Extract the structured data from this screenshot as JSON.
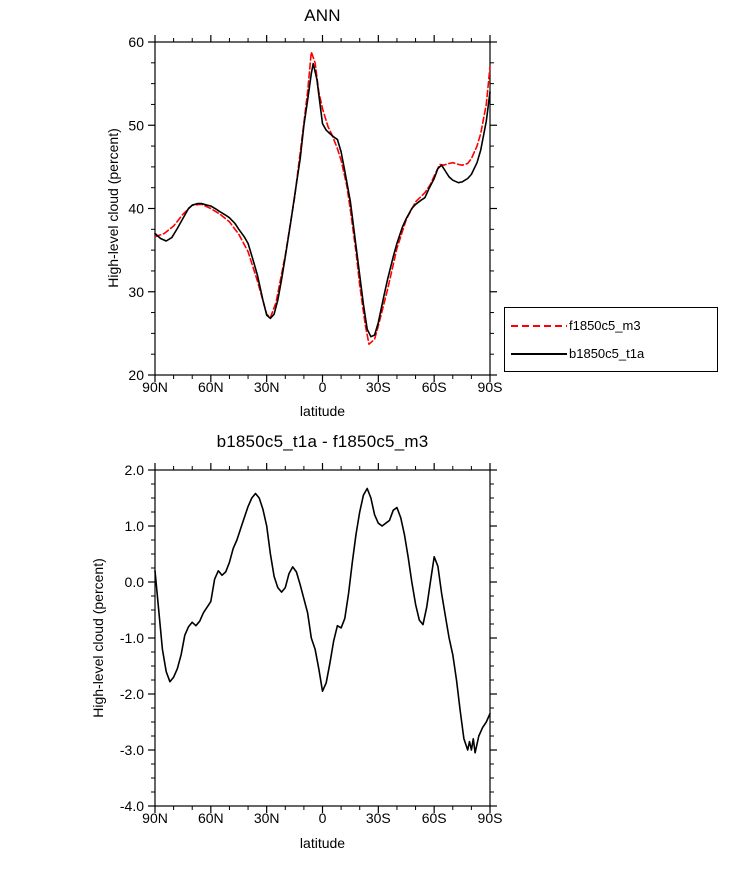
{
  "figure": {
    "background": "#ffffff",
    "series_red": "#ff0000",
    "series_black": "#000000"
  },
  "chart_data": [
    {
      "type": "line",
      "title": "ANN",
      "xlabel": "latitude",
      "ylabel": "High-level cloud (percent)",
      "xlim_degrees": [
        90,
        -90
      ],
      "ylim": [
        20,
        60
      ],
      "grid": false,
      "legend_position": "outside-right",
      "x_tick_values": [
        90,
        60,
        30,
        0,
        -30,
        -60,
        -90
      ],
      "x_tick_labels": [
        "90N",
        "60N",
        "30N",
        "0",
        "30S",
        "60S",
        "90S"
      ],
      "y_tick_values": [
        20,
        30,
        40,
        50,
        60
      ],
      "y_tick_labels": [
        "20",
        "30",
        "40",
        "50",
        "60"
      ],
      "series": [
        {
          "name": "f1850c5_m3",
          "color": "#ff0000",
          "style": "dashed",
          "lat": [
            90,
            85,
            80,
            75,
            70,
            65,
            60,
            55,
            50,
            45,
            40,
            35,
            30,
            28,
            25,
            20,
            15,
            10,
            8,
            6,
            4,
            2,
            0,
            -3,
            -5,
            -8,
            -10,
            -13,
            -15,
            -18,
            -20,
            -23,
            -25,
            -28,
            -30,
            -35,
            -40,
            -45,
            -50,
            -55,
            -58,
            -60,
            -63,
            -65,
            -68,
            -70,
            -73,
            -75,
            -78,
            -80,
            -83,
            -85,
            -88,
            -90
          ],
          "values": [
            36.6,
            37.0,
            37.9,
            39.3,
            40.4,
            40.5,
            40.0,
            39.3,
            38.4,
            36.9,
            34.8,
            31.3,
            27.3,
            26.9,
            28.7,
            34.4,
            41.3,
            50.3,
            54.0,
            58.8,
            57.5,
            54.0,
            52.0,
            49.8,
            48.9,
            47.2,
            45.8,
            42.8,
            39.8,
            34.8,
            30.8,
            26.0,
            23.7,
            24.3,
            25.9,
            30.3,
            35.2,
            38.7,
            40.8,
            41.9,
            42.9,
            43.9,
            45.3,
            45.2,
            45.4,
            45.5,
            45.3,
            45.2,
            45.4,
            46.0,
            47.5,
            49.0,
            52.5,
            57.0
          ]
        },
        {
          "name": "b1850c5_t1a",
          "color": "#000000",
          "style": "solid",
          "lat": [
            90,
            87,
            84,
            81,
            78,
            75,
            72,
            70,
            67,
            65,
            62,
            60,
            57,
            55,
            52,
            50,
            47,
            45,
            42,
            40,
            37,
            35,
            32,
            30,
            28,
            26,
            24,
            22,
            20,
            17,
            15,
            12,
            10,
            8,
            6,
            5,
            3,
            1,
            0,
            -2,
            -4,
            -6,
            -8,
            -10,
            -12,
            -15,
            -18,
            -20,
            -22,
            -24,
            -26,
            -28,
            -30,
            -33,
            -35,
            -38,
            -40,
            -43,
            -45,
            -48,
            -50,
            -53,
            -55,
            -57,
            -60,
            -62,
            -64,
            -66,
            -68,
            -70,
            -73,
            -75,
            -78,
            -80,
            -83,
            -85,
            -88,
            -90
          ],
          "values": [
            37.0,
            36.4,
            36.1,
            36.5,
            37.6,
            38.8,
            40.0,
            40.4,
            40.6,
            40.6,
            40.4,
            40.3,
            39.9,
            39.6,
            39.2,
            38.9,
            38.2,
            37.5,
            36.6,
            35.8,
            33.6,
            32.0,
            29.0,
            27.2,
            26.8,
            27.3,
            29.0,
            31.5,
            34.2,
            38.5,
            41.5,
            46.0,
            50.0,
            53.0,
            56.2,
            57.4,
            55.5,
            52.0,
            50.2,
            49.4,
            49.0,
            48.6,
            48.3,
            46.8,
            44.5,
            40.8,
            35.5,
            32.0,
            28.5,
            25.5,
            24.6,
            24.8,
            26.3,
            29.5,
            31.5,
            34.2,
            35.8,
            37.8,
            38.8,
            40.0,
            40.5,
            41.0,
            41.3,
            42.3,
            43.6,
            44.8,
            45.2,
            44.5,
            43.8,
            43.4,
            43.1,
            43.2,
            43.6,
            44.1,
            45.5,
            47.0,
            50.5,
            54.0
          ]
        }
      ]
    },
    {
      "type": "line",
      "title": "b1850c5_t1a - f1850c5_m3",
      "xlabel": "latitude",
      "ylabel": "High-level cloud (percent)",
      "xlim_degrees": [
        90,
        -90
      ],
      "ylim": [
        -4,
        2
      ],
      "grid": false,
      "legend_position": "none",
      "x_tick_values": [
        90,
        60,
        30,
        0,
        -30,
        -60,
        -90
      ],
      "x_tick_labels": [
        "90N",
        "60N",
        "30N",
        "0",
        "30S",
        "60S",
        "90S"
      ],
      "y_tick_values": [
        -4,
        -3,
        -2,
        -1,
        0,
        1,
        2
      ],
      "y_tick_labels": [
        "-4.0",
        "-3.0",
        "-2.0",
        "-1.0",
        "0.0",
        "1.0",
        "2.0"
      ],
      "series": [
        {
          "name": "b1850c5_t1a - f1850c5_m3",
          "color": "#000000",
          "style": "solid",
          "lat": [
            90,
            88,
            86,
            84,
            82,
            80,
            78,
            76,
            74,
            72,
            70,
            68,
            66,
            64,
            62,
            60,
            58,
            56,
            54,
            52,
            50,
            48,
            46,
            44,
            42,
            40,
            38,
            36,
            34,
            32,
            30,
            28,
            26,
            24,
            22,
            20,
            18,
            16,
            14,
            12,
            10,
            8,
            6,
            4,
            2,
            0,
            -2,
            -4,
            -6,
            -8,
            -10,
            -12,
            -14,
            -16,
            -18,
            -20,
            -22,
            -24,
            -26,
            -28,
            -30,
            -32,
            -34,
            -36,
            -38,
            -40,
            -42,
            -44,
            -46,
            -48,
            -50,
            -52,
            -54,
            -56,
            -58,
            -60,
            -62,
            -64,
            -66,
            -68,
            -70,
            -72,
            -74,
            -76,
            -78,
            -79,
            -80,
            -81,
            -82,
            -84,
            -86,
            -88,
            -90
          ],
          "values": [
            0.2,
            -0.5,
            -1.2,
            -1.6,
            -1.78,
            -1.7,
            -1.55,
            -1.3,
            -0.95,
            -0.8,
            -0.72,
            -0.78,
            -0.7,
            -0.55,
            -0.45,
            -0.35,
            0.05,
            0.2,
            0.12,
            0.18,
            0.35,
            0.6,
            0.75,
            0.95,
            1.15,
            1.35,
            1.5,
            1.58,
            1.5,
            1.3,
            1.0,
            0.5,
            0.1,
            -0.1,
            -0.18,
            -0.1,
            0.15,
            0.27,
            0.18,
            -0.05,
            -0.3,
            -0.55,
            -1.0,
            -1.2,
            -1.55,
            -1.95,
            -1.8,
            -1.45,
            -1.05,
            -0.78,
            -0.82,
            -0.65,
            -0.2,
            0.35,
            0.85,
            1.25,
            1.55,
            1.67,
            1.5,
            1.2,
            1.05,
            1.0,
            1.05,
            1.1,
            1.28,
            1.33,
            1.15,
            0.85,
            0.45,
            0.0,
            -0.4,
            -0.68,
            -0.76,
            -0.45,
            0.0,
            0.45,
            0.28,
            -0.2,
            -0.6,
            -1.0,
            -1.3,
            -1.75,
            -2.3,
            -2.8,
            -3.0,
            -2.85,
            -3.0,
            -2.8,
            -3.05,
            -2.75,
            -2.6,
            -2.5,
            -2.35
          ]
        }
      ]
    }
  ]
}
